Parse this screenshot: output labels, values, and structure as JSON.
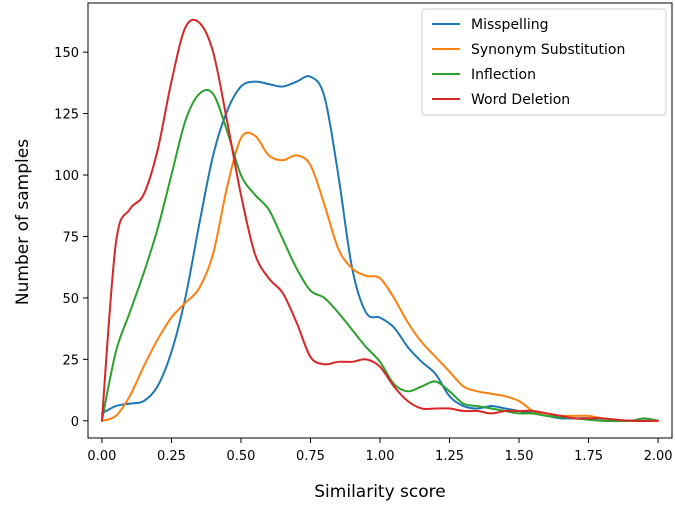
{
  "chart_data": {
    "type": "line",
    "title": "",
    "xlabel": "Similarity score",
    "ylabel": "Number of samples",
    "xlim": [
      -0.05,
      2.05
    ],
    "ylim": [
      -7,
      170
    ],
    "x_ticks": [
      0.0,
      0.25,
      0.5,
      0.75,
      1.0,
      1.25,
      1.5,
      1.75,
      2.0
    ],
    "x_tick_labels": [
      "0.00",
      "0.25",
      "0.50",
      "0.75",
      "1.00",
      "1.25",
      "1.50",
      "1.75",
      "2.00"
    ],
    "y_ticks": [
      0,
      25,
      50,
      75,
      100,
      125,
      150
    ],
    "y_tick_labels": [
      "0",
      "25",
      "50",
      "75",
      "100",
      "125",
      "150"
    ],
    "grid": false,
    "legend_position": "top-right",
    "series": [
      {
        "name": "Misspelling",
        "color": "#1f77b4",
        "points": [
          [
            0.0,
            3
          ],
          [
            0.05,
            6
          ],
          [
            0.1,
            7
          ],
          [
            0.15,
            8
          ],
          [
            0.2,
            14
          ],
          [
            0.25,
            28
          ],
          [
            0.3,
            50
          ],
          [
            0.35,
            80
          ],
          [
            0.4,
            108
          ],
          [
            0.45,
            126
          ],
          [
            0.5,
            136
          ],
          [
            0.55,
            138
          ],
          [
            0.6,
            137
          ],
          [
            0.65,
            136
          ],
          [
            0.7,
            138
          ],
          [
            0.75,
            140
          ],
          [
            0.8,
            132
          ],
          [
            0.85,
            100
          ],
          [
            0.9,
            62
          ],
          [
            0.95,
            44
          ],
          [
            1.0,
            42
          ],
          [
            1.05,
            38
          ],
          [
            1.1,
            30
          ],
          [
            1.15,
            24
          ],
          [
            1.2,
            19
          ],
          [
            1.25,
            10
          ],
          [
            1.3,
            6
          ],
          [
            1.35,
            5
          ],
          [
            1.4,
            6
          ],
          [
            1.45,
            5
          ],
          [
            1.5,
            4
          ],
          [
            1.55,
            3
          ],
          [
            1.6,
            2
          ],
          [
            1.65,
            1
          ],
          [
            1.7,
            1
          ],
          [
            1.75,
            1
          ],
          [
            1.8,
            0
          ],
          [
            1.9,
            0
          ],
          [
            2.0,
            0
          ]
        ]
      },
      {
        "name": "Synonym Substitution",
        "color": "#ff7f0e",
        "points": [
          [
            0.0,
            0
          ],
          [
            0.05,
            2
          ],
          [
            0.1,
            10
          ],
          [
            0.15,
            22
          ],
          [
            0.2,
            33
          ],
          [
            0.25,
            42
          ],
          [
            0.3,
            48
          ],
          [
            0.35,
            54
          ],
          [
            0.4,
            68
          ],
          [
            0.45,
            95
          ],
          [
            0.5,
            115
          ],
          [
            0.55,
            116
          ],
          [
            0.6,
            108
          ],
          [
            0.65,
            106
          ],
          [
            0.7,
            108
          ],
          [
            0.75,
            104
          ],
          [
            0.8,
            88
          ],
          [
            0.85,
            70
          ],
          [
            0.9,
            62
          ],
          [
            0.95,
            59
          ],
          [
            1.0,
            58
          ],
          [
            1.05,
            50
          ],
          [
            1.1,
            40
          ],
          [
            1.15,
            32
          ],
          [
            1.2,
            26
          ],
          [
            1.25,
            20
          ],
          [
            1.3,
            14
          ],
          [
            1.35,
            12
          ],
          [
            1.4,
            11
          ],
          [
            1.45,
            10
          ],
          [
            1.5,
            8
          ],
          [
            1.55,
            4
          ],
          [
            1.6,
            2
          ],
          [
            1.65,
            2
          ],
          [
            1.7,
            2
          ],
          [
            1.75,
            2
          ],
          [
            1.8,
            1
          ],
          [
            1.9,
            0
          ],
          [
            2.0,
            0
          ]
        ]
      },
      {
        "name": "Inflection",
        "color": "#2ca02c",
        "points": [
          [
            0.0,
            0
          ],
          [
            0.05,
            28
          ],
          [
            0.1,
            44
          ],
          [
            0.15,
            60
          ],
          [
            0.2,
            78
          ],
          [
            0.25,
            100
          ],
          [
            0.3,
            122
          ],
          [
            0.35,
            133
          ],
          [
            0.4,
            133
          ],
          [
            0.45,
            118
          ],
          [
            0.5,
            100
          ],
          [
            0.55,
            92
          ],
          [
            0.6,
            86
          ],
          [
            0.65,
            74
          ],
          [
            0.7,
            62
          ],
          [
            0.75,
            53
          ],
          [
            0.8,
            50
          ],
          [
            0.85,
            44
          ],
          [
            0.9,
            37
          ],
          [
            0.95,
            30
          ],
          [
            1.0,
            24
          ],
          [
            1.05,
            15
          ],
          [
            1.1,
            12
          ],
          [
            1.15,
            14
          ],
          [
            1.2,
            16
          ],
          [
            1.25,
            12
          ],
          [
            1.3,
            7
          ],
          [
            1.35,
            6
          ],
          [
            1.4,
            5
          ],
          [
            1.45,
            4
          ],
          [
            1.5,
            3
          ],
          [
            1.55,
            3
          ],
          [
            1.6,
            2
          ],
          [
            1.7,
            1
          ],
          [
            1.8,
            0
          ],
          [
            1.9,
            0
          ],
          [
            1.95,
            1
          ],
          [
            2.0,
            0
          ]
        ]
      },
      {
        "name": "Word Deletion",
        "color": "#d62728",
        "points": [
          [
            0.0,
            0
          ],
          [
            0.05,
            72
          ],
          [
            0.1,
            86
          ],
          [
            0.15,
            92
          ],
          [
            0.2,
            110
          ],
          [
            0.25,
            138
          ],
          [
            0.3,
            160
          ],
          [
            0.35,
            162
          ],
          [
            0.4,
            150
          ],
          [
            0.45,
            122
          ],
          [
            0.5,
            92
          ],
          [
            0.55,
            68
          ],
          [
            0.6,
            58
          ],
          [
            0.65,
            52
          ],
          [
            0.7,
            40
          ],
          [
            0.75,
            26
          ],
          [
            0.8,
            23
          ],
          [
            0.85,
            24
          ],
          [
            0.9,
            24
          ],
          [
            0.95,
            25
          ],
          [
            1.0,
            22
          ],
          [
            1.05,
            14
          ],
          [
            1.1,
            8
          ],
          [
            1.15,
            5
          ],
          [
            1.2,
            5
          ],
          [
            1.25,
            5
          ],
          [
            1.3,
            4
          ],
          [
            1.35,
            4
          ],
          [
            1.4,
            3
          ],
          [
            1.45,
            4
          ],
          [
            1.5,
            4
          ],
          [
            1.55,
            4
          ],
          [
            1.6,
            3
          ],
          [
            1.65,
            2
          ],
          [
            1.7,
            1
          ],
          [
            1.75,
            1
          ],
          [
            1.8,
            1
          ],
          [
            1.9,
            0
          ],
          [
            2.0,
            0
          ]
        ]
      }
    ]
  }
}
